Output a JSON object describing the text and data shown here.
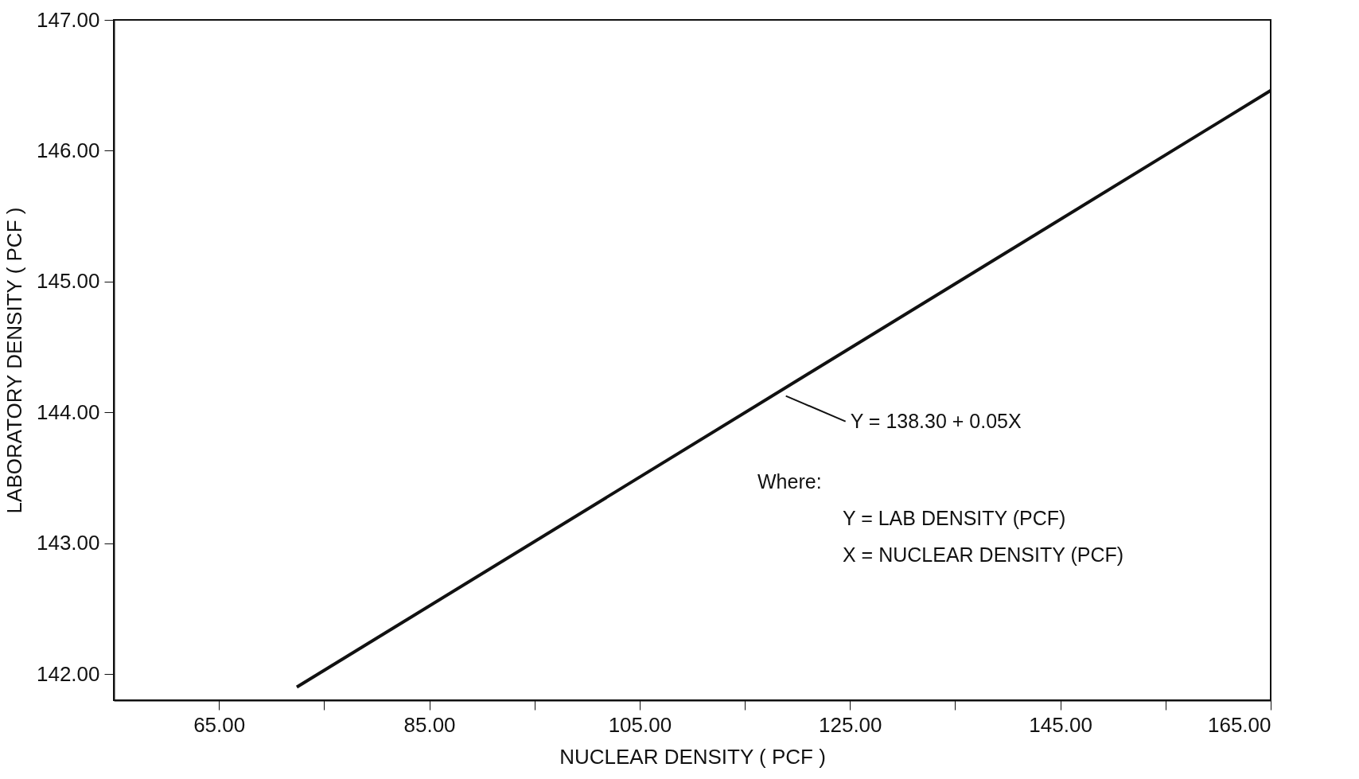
{
  "chart_data": {
    "type": "line",
    "xlabel": "NUCLEAR  DENSITY ( PCF )",
    "ylabel": "LABORATORY  DENSITY ( PCF )",
    "xlim": [
      55,
      165
    ],
    "ylim": [
      141.8,
      147
    ],
    "xticks": [
      {
        "value": 65,
        "label": "65.00"
      },
      {
        "value": 75,
        "label": null
      },
      {
        "value": 85,
        "label": "85.00"
      },
      {
        "value": 95,
        "label": null
      },
      {
        "value": 105,
        "label": "105.00"
      },
      {
        "value": 115,
        "label": null
      },
      {
        "value": 125,
        "label": "125.00"
      },
      {
        "value": 135,
        "label": null
      },
      {
        "value": 145,
        "label": "145.00"
      },
      {
        "value": 155,
        "label": null
      },
      {
        "value": 165,
        "label": "165.00"
      }
    ],
    "yticks": [
      {
        "value": 142,
        "label": "142.00"
      },
      {
        "value": 143,
        "label": "143.00"
      },
      {
        "value": 144,
        "label": "144.00"
      },
      {
        "value": 145,
        "label": "145.00"
      },
      {
        "value": 146,
        "label": "146.00"
      },
      {
        "value": 147,
        "label": "147.00"
      }
    ],
    "series": [
      {
        "color": "#111111",
        "x": [
          72.4,
          165
        ],
        "values": [
          141.9,
          146.46
        ]
      }
    ],
    "marker": "none",
    "line_style": "solid",
    "grid": false,
    "annotations": [
      {
        "text": "Y = 138.30 + 0.05X",
        "x": 118.6,
        "y": 144.15
      },
      "Where:",
      "Y = LAB DENSITY (PCF)",
      "X = NUCLEAR DENSITY (PCF)"
    ]
  }
}
